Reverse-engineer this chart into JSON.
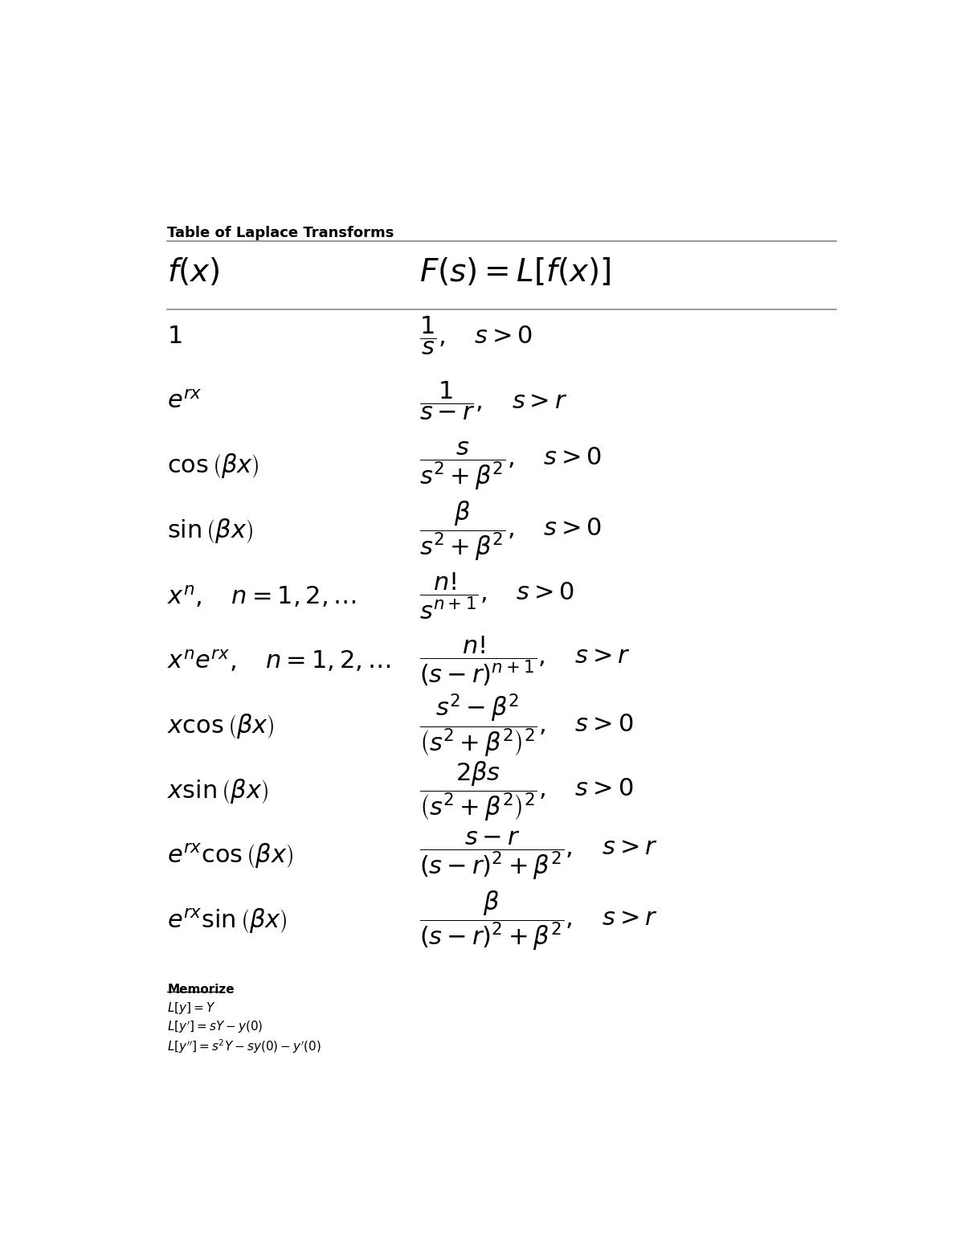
{
  "title": "Table of Laplace Transforms",
  "col1_header": "$f\\left(x\\right)$",
  "col2_header": "$F\\left(s\\right)=L\\left[f\\left(x\\right)\\right]$",
  "rows": [
    {
      "fx": "$1$",
      "Fs": "$\\dfrac{1}{s},\\quad s>0$"
    },
    {
      "fx": "$e^{rx}$",
      "Fs": "$\\dfrac{1}{s-r},\\quad s>r$"
    },
    {
      "fx": "$\\cos\\left(\\beta x\\right)$",
      "Fs": "$\\dfrac{s}{s^2+\\beta^2},\\quad s>0$"
    },
    {
      "fx": "$\\sin\\left(\\beta x\\right)$",
      "Fs": "$\\dfrac{\\beta}{s^2+\\beta^2},\\quad s>0$"
    },
    {
      "fx": "$x^n, \\quad n=1,2,\\ldots$",
      "Fs": "$\\dfrac{n!}{s^{n+1}},\\quad s>0$"
    },
    {
      "fx": "$x^n e^{rx}, \\quad n=1,2,\\ldots$",
      "Fs": "$\\dfrac{n!}{\\left(s-r\\right)^{n+1}},\\quad s>r$"
    },
    {
      "fx": "$x\\cos\\left(\\beta x\\right)$",
      "Fs": "$\\dfrac{s^2-\\beta^2}{\\left(s^2+\\beta^2\\right)^2},\\quad s>0$"
    },
    {
      "fx": "$x\\sin\\left(\\beta x\\right)$",
      "Fs": "$\\dfrac{2\\beta s}{\\left(s^2+\\beta^2\\right)^2},\\quad s>0$"
    },
    {
      "fx": "$e^{rx}\\cos\\left(\\beta x\\right)$",
      "Fs": "$\\dfrac{s-r}{\\left(s-r\\right)^2+\\beta^2},\\quad s>r$"
    },
    {
      "fx": "$e^{rx}\\sin\\left(\\beta x\\right)$",
      "Fs": "$\\dfrac{\\beta}{\\left(s-r\\right)^2+\\beta^2},\\quad s>r$"
    }
  ],
  "memorize_title": "Memorize",
  "memorize_lines": [
    "$L[y]=Y$",
    "$L[y']=sY-y(0)$",
    "$L[y'']=s^2Y-sy(0)-y'(0)$"
  ],
  "bg_color": "#ffffff",
  "text_color": "#000000",
  "line_color": "#888888",
  "title_fontsize": 13,
  "header_fontsize": 28,
  "row_fontsize": 22,
  "memo_fontsize": 11
}
